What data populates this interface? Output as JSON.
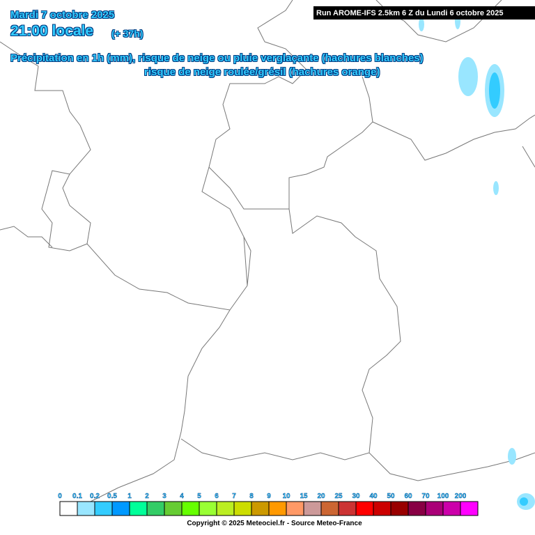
{
  "header": {
    "date": "Mardi 7 octobre 2025",
    "time": "21:00 locale",
    "lead": "(+ 37h)",
    "line1": "Précipitation en 1h (mm), risque de neige ou pluie verglaçante (hachures blanches)",
    "line2": "risque de neige roulée/grésil (hachures orange)",
    "run": "Run AROME-IFS 2.5km 6 Z du Lundi 6 octobre 2025"
  },
  "legend": {
    "items": [
      {
        "label": 0,
        "color": "#ffffff"
      },
      {
        "label": 0.1,
        "color": "#99e6ff"
      },
      {
        "label": 0.2,
        "color": "#33ccff"
      },
      {
        "label": 0.5,
        "color": "#0099ff"
      },
      {
        "label": 1,
        "color": "#00ff99"
      },
      {
        "label": 2,
        "color": "#33cc66"
      },
      {
        "label": 3,
        "color": "#66cc33"
      },
      {
        "label": 4,
        "color": "#66ff00"
      },
      {
        "label": 5,
        "color": "#99ff33"
      },
      {
        "label": 6,
        "color": "#bbee22"
      },
      {
        "label": 7,
        "color": "#ccdd00"
      },
      {
        "label": 8,
        "color": "#cc9900"
      },
      {
        "label": 9,
        "color": "#ff9900"
      },
      {
        "label": 10,
        "color": "#ff9966"
      },
      {
        "label": 15,
        "color": "#cc9999"
      },
      {
        "label": 20,
        "color": "#cc6633"
      },
      {
        "label": 25,
        "color": "#cc3333"
      },
      {
        "label": 30,
        "color": "#ff0000"
      },
      {
        "label": 40,
        "color": "#cc0000"
      },
      {
        "label": 50,
        "color": "#990000"
      },
      {
        "label": 60,
        "color": "#880044"
      },
      {
        "label": 70,
        "color": "#aa0077"
      },
      {
        "label": 100,
        "color": "#cc00aa"
      },
      {
        "label": 200,
        "color": "#ff00ff"
      }
    ],
    "copyright": "Copyright © 2025 Meteociel.fr - Source Meteo-France"
  }
}
